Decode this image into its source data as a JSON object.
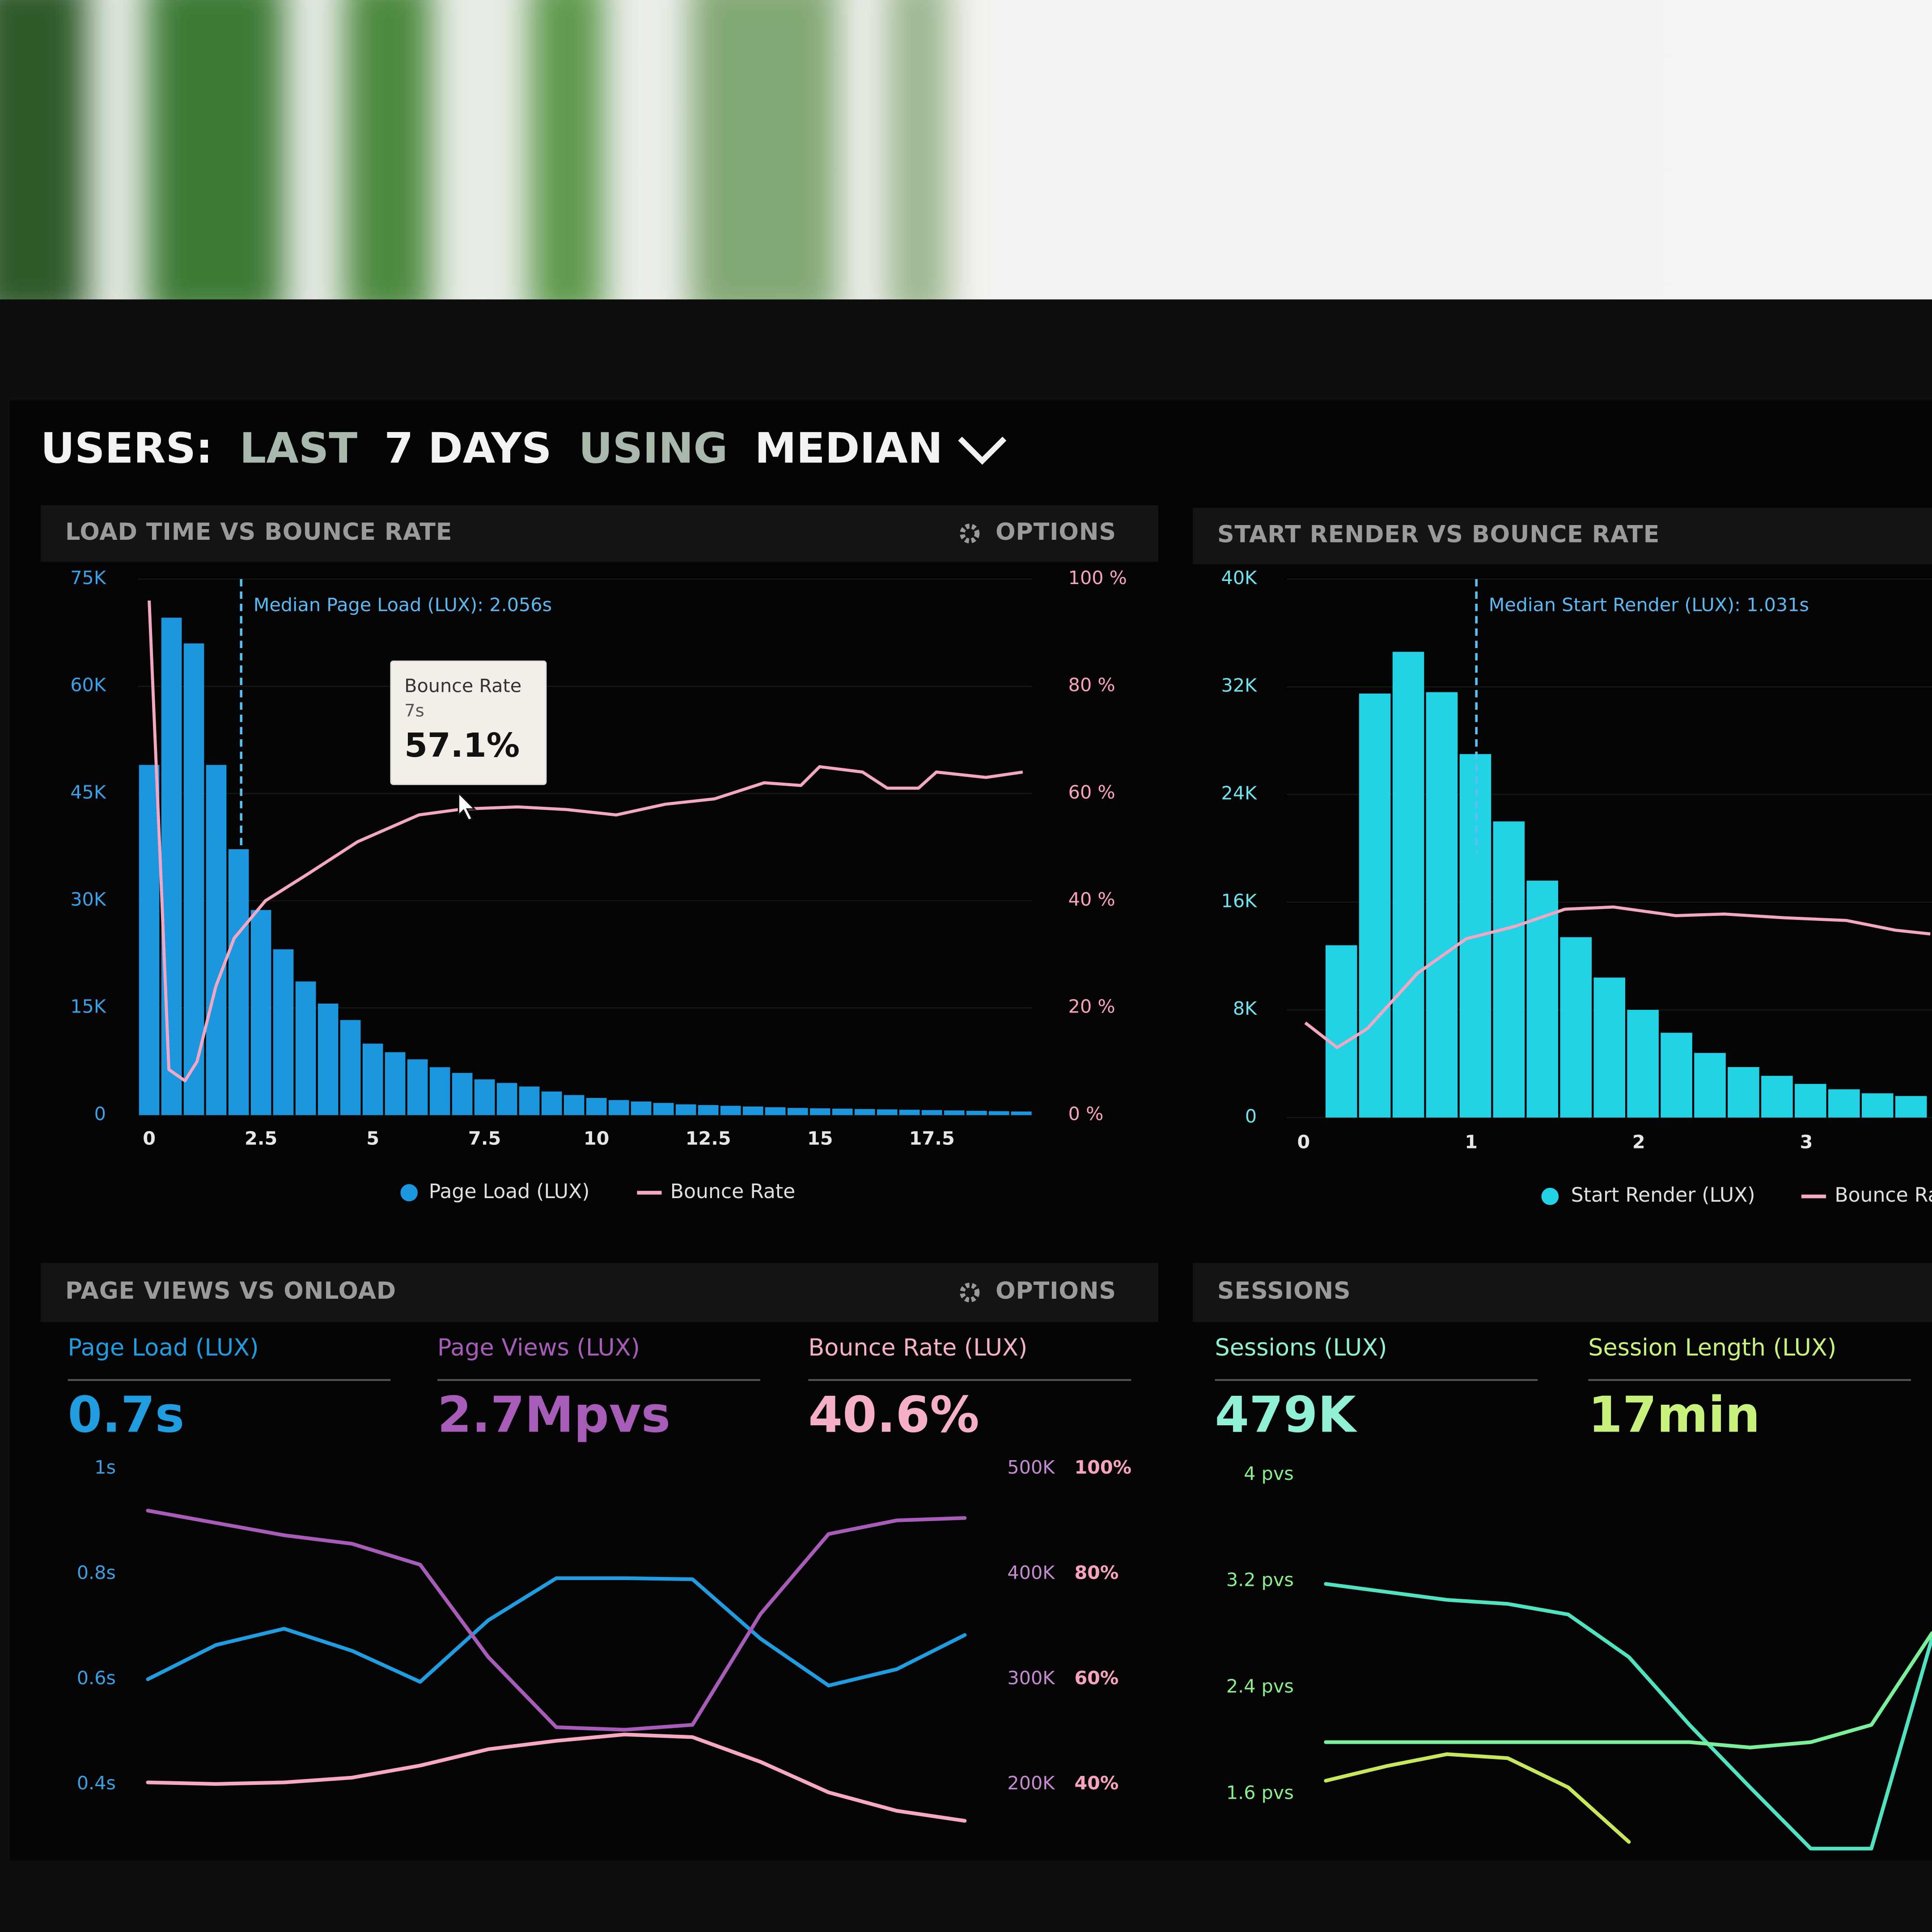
{
  "header": {
    "title": [
      "USERS:",
      "LAST",
      "7 DAYS",
      "USING",
      "MEDIAN"
    ]
  },
  "chart_data": [
    {
      "type": "histogram",
      "title": "LOAD TIME VS BOUNCE RATE",
      "options": "OPTIONS",
      "grid": true,
      "bins": [
        -0.25,
        0.25,
        0.75,
        1.25,
        1.75,
        2.25,
        2.75,
        3.25,
        3.75,
        4.25,
        4.75,
        5.25,
        5.75,
        6.25,
        6.75,
        7.25,
        7.75,
        8.25,
        8.75,
        9.25,
        9.75,
        10.25,
        10.75,
        11.25,
        11.75,
        12.25,
        12.75,
        13.25,
        13.75,
        14.25,
        14.75,
        15.25,
        15.75,
        16.25,
        16.75,
        17.25,
        17.75,
        18.25,
        18.75,
        19.25,
        19.75
      ],
      "xlim": [
        -0.25,
        19.75
      ],
      "xticks": [
        0,
        2.5,
        5,
        7.5,
        10,
        12.5,
        15,
        17.5
      ],
      "ylim": [
        0,
        75000
      ],
      "yticks": [
        0,
        {
          "value": 15000,
          "label": "15K"
        },
        {
          "value": 30000,
          "label": "30K"
        },
        {
          "value": 45000,
          "label": "45K"
        },
        {
          "value": 60000,
          "label": "60K"
        },
        {
          "value": 75000,
          "label": "75K"
        }
      ],
      "y2lim": [
        0,
        100
      ],
      "y2ticks": [
        {
          "value": 0,
          "label": "0 %"
        },
        {
          "value": 20,
          "label": "20 %"
        },
        {
          "value": 40,
          "label": "40 %"
        },
        {
          "value": 60,
          "label": "60 %"
        },
        {
          "value": 80,
          "label": "80 %"
        },
        {
          "value": 100,
          "label": "100 %"
        }
      ],
      "series": [
        {
          "name": "Page Load (LUX)",
          "color": "#1b97e0",
          "values": [
            49000,
            69600,
            66000,
            49000,
            37200,
            28700,
            23200,
            18700,
            15600,
            13300,
            10000,
            8800,
            7800,
            6700,
            5900,
            5000,
            4500,
            4000,
            3300,
            2800,
            2400,
            2100,
            1900,
            1700,
            1500,
            1400,
            1300,
            1200,
            1100,
            1000,
            950,
            900,
            850,
            800,
            750,
            700,
            650,
            600,
            550,
            500
          ]
        },
        {
          "name": "Bounce Rate",
          "color": "#f4a7c2",
          "axis": "y2",
          "x": [
            0,
            0.25,
            0.44,
            0.8,
            1.07,
            1.49,
            1.9,
            2.6,
            3.55,
            4.66,
            6.03,
            7.0,
            8.24,
            9.34,
            10.44,
            11.54,
            12.64,
            13.75,
            14.57,
            14.99,
            15.95,
            16.5,
            17.2,
            17.6,
            18.71,
            19.53
          ],
          "values": [
            96,
            47,
            8.5,
            6.4,
            10,
            24,
            33,
            40,
            45,
            51,
            56,
            57.1,
            57.5,
            57,
            56,
            58,
            59,
            62,
            61.5,
            65,
            64,
            61,
            61,
            64,
            63,
            64
          ]
        }
      ],
      "annotation": {
        "text": "Median Page Load (LUX): 2.056s",
        "x": 2.056
      },
      "tooltip": {
        "title": "Bounce Rate",
        "subtitle": "7s",
        "value": 57.1,
        "value_label": "57.1%",
        "x": 7
      }
    },
    {
      "type": "histogram",
      "title": "START RENDER VS BOUNCE RATE",
      "grid": true,
      "bins": [
        0.125,
        0.325,
        0.525,
        0.725,
        0.925,
        1.125,
        1.325,
        1.525,
        1.725,
        1.925,
        2.125,
        2.325,
        2.525,
        2.725,
        2.925,
        3.125,
        3.325,
        3.525,
        3.725
      ],
      "xlim": [
        -0.1,
        3.75
      ],
      "xticks": [
        0,
        1,
        2,
        3
      ],
      "ylim": [
        0,
        40000
      ],
      "yticks": [
        0,
        {
          "value": 8000,
          "label": "8K"
        },
        {
          "value": 16000,
          "label": "16K"
        },
        {
          "value": 24000,
          "label": "24K"
        },
        {
          "value": 32000,
          "label": "32K"
        },
        {
          "value": 40000,
          "label": "40K"
        }
      ],
      "y2lim": [
        0,
        100
      ],
      "series": [
        {
          "name": "Start Render (LUX)",
          "color": "#22d3e6",
          "values": [
            12800,
            31500,
            34600,
            31600,
            27000,
            22000,
            17600,
            13400,
            10400,
            8000,
            6300,
            4800,
            3750,
            3100,
            2500,
            2100,
            1800,
            1600
          ]
        },
        {
          "name": "Bounce Rate",
          "color": "#f4a7c2",
          "axis": "y2",
          "x": [
            0.01,
            0.2,
            0.38,
            0.68,
            0.97,
            1.26,
            1.56,
            1.85,
            2.22,
            2.51,
            2.87,
            3.24,
            3.53,
            3.74
          ],
          "values": [
            17.6,
            13,
            16.5,
            26.8,
            33.2,
            35.5,
            38.7,
            39.1,
            37.5,
            37.8,
            37.1,
            36.6,
            34.8,
            34.1
          ]
        }
      ],
      "annotation": {
        "text": "Median Start Render (LUX): 1.031s",
        "x": 1.031
      }
    },
    {
      "type": "line",
      "title": "PAGE VIEWS VS ONLOAD",
      "options": "OPTIONS",
      "stats": [
        {
          "label": "Page Load (LUX)",
          "value": "0.7s",
          "color": "#1f9de0"
        },
        {
          "label": "Page Views (LUX)",
          "value": "2.7Mpvs",
          "color": "#a75cb8"
        },
        {
          "label": "Bounce Rate (LUX)",
          "value": "40.6%",
          "color": "#f6b0c6"
        }
      ],
      "categories": [
        null,
        null,
        null,
        null,
        null,
        null,
        null,
        null,
        null,
        null,
        null,
        null,
        null
      ],
      "ylim": [
        0.3,
        1
      ],
      "yticks": [
        {
          "value": 0.4,
          "label": "0.4s"
        },
        {
          "value": 0.6,
          "label": "0.6s"
        },
        {
          "value": 0.8,
          "label": "0.8s"
        },
        {
          "value": 1,
          "label": "1s"
        }
      ],
      "y2lim": [
        150000,
        500000
      ],
      "y2ticks": [
        {
          "value": 200000,
          "label": "200K"
        },
        {
          "value": 300000,
          "label": "300K"
        },
        {
          "value": 400000,
          "label": "400K"
        },
        {
          "value": 500000,
          "label": "500K"
        }
      ],
      "y3lim": [
        30,
        100
      ],
      "y3ticks": [
        {
          "value": 40,
          "label": "40%"
        },
        {
          "value": 60,
          "label": "60%"
        },
        {
          "value": 80,
          "label": "80%"
        },
        {
          "value": 100,
          "label": "100%"
        }
      ],
      "series": [
        {
          "color": "#1f9de0",
          "values": [
            0.6,
            0.665,
            0.696,
            0.654,
            0.595,
            0.712,
            0.792,
            0.792,
            0.79,
            0.677,
            0.588,
            0.619,
            0.684
          ]
        },
        {
          "color": "#a75cb8",
          "axis": "y2",
          "values": [
            460200,
            448500,
            436800,
            428700,
            408800,
            321100,
            254400,
            252000,
            256700,
            362000,
            438000,
            450900,
            453200
          ]
        },
        {
          "color": "#f6a9c0",
          "axis": "y3",
          "values": [
            40.4,
            40.1,
            40.4,
            41.3,
            43.6,
            46.7,
            48.3,
            49.5,
            49,
            44.3,
            38.5,
            35,
            33.1
          ]
        }
      ]
    },
    {
      "type": "line",
      "title": "SESSIONS",
      "stats": [
        {
          "label": "Sessions (LUX)",
          "value": "479K",
          "color": "#8ff0d6"
        },
        {
          "label": "Session Length (LUX)",
          "value": "17min",
          "color": "#c9f27c"
        }
      ],
      "categories": [
        null,
        null,
        null,
        null,
        null,
        null,
        null,
        null,
        null,
        null,
        null
      ],
      "ylim": [
        1.1,
        4
      ],
      "yticks": [
        {
          "value": 1.6,
          "label": "1.6 pvs"
        },
        {
          "value": 2.4,
          "label": "2.4 pvs"
        },
        {
          "value": 3.2,
          "label": "3.2 pvs"
        },
        {
          "value": 4,
          "label": "4 pvs"
        }
      ],
      "series": [
        {
          "color": "#4fe3c0",
          "values": [
            3.18,
            3.12,
            3.06,
            3.03,
            2.95,
            2.63,
            2.12,
            1.65,
            1.19,
            1.19,
            2.77
          ]
        },
        {
          "color": "#7af09a",
          "values": [
            1.99,
            1.99,
            1.99,
            1.99,
            1.99,
            1.99,
            1.99,
            1.95,
            1.99,
            2.12,
            2.81
          ]
        },
        {
          "color": "#c6e85a",
          "values": [
            1.7,
            1.81,
            1.9,
            1.87,
            1.65,
            1.24,
            null,
            null,
            null,
            null,
            null
          ]
        }
      ]
    }
  ]
}
